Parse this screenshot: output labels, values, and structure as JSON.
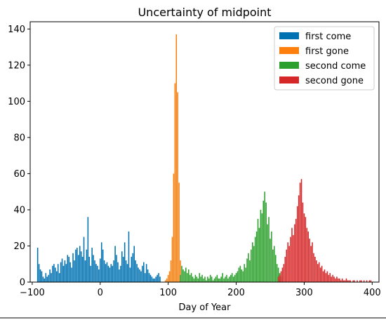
{
  "chart_data": {
    "type": "bar",
    "histogram": true,
    "title": "Uncertainty of midpoint",
    "xlabel": "Day of Year",
    "ylabel": "",
    "xlim": [
      -103,
      410
    ],
    "ylim": [
      0,
      144
    ],
    "xticks": [
      -100,
      0,
      100,
      200,
      300,
      400
    ],
    "yticks": [
      0,
      20,
      40,
      60,
      80,
      100,
      120,
      140
    ],
    "bin_width": 1.6,
    "legend_position": "top-right",
    "grid": false,
    "series": [
      {
        "name": "first come",
        "color": "#0072b2",
        "x": [
          -92,
          -90,
          -88,
          -86,
          -84,
          -82,
          -80,
          -78,
          -76,
          -74,
          -72,
          -70,
          -68,
          -66,
          -64,
          -62,
          -60,
          -58,
          -56,
          -54,
          -52,
          -50,
          -48,
          -46,
          -44,
          -42,
          -40,
          -38,
          -36,
          -34,
          -32,
          -30,
          -28,
          -26,
          -24,
          -22,
          -20,
          -18,
          -16,
          -14,
          -12,
          -10,
          -8,
          -6,
          -4,
          -2,
          0,
          2,
          4,
          6,
          8,
          10,
          12,
          14,
          16,
          18,
          20,
          22,
          24,
          26,
          28,
          30,
          32,
          34,
          36,
          38,
          40,
          42,
          44,
          46,
          48,
          50,
          52,
          54,
          56,
          58,
          60,
          62,
          64,
          66,
          68,
          70,
          72,
          74,
          76,
          78,
          80,
          82,
          84,
          86,
          88
        ],
        "values": [
          19,
          10,
          7,
          6,
          3,
          2,
          5,
          3,
          4,
          7,
          5,
          9,
          10,
          8,
          6,
          10,
          5,
          11,
          13,
          9,
          12,
          10,
          15,
          14,
          11,
          8,
          16,
          12,
          18,
          19,
          15,
          20,
          17,
          14,
          25,
          12,
          18,
          36,
          14,
          9,
          19,
          15,
          12,
          10,
          9,
          7,
          13,
          22,
          18,
          12,
          10,
          11,
          9,
          8,
          10,
          9,
          12,
          20,
          15,
          11,
          7,
          9,
          17,
          14,
          22,
          12,
          10,
          28,
          8,
          14,
          16,
          20,
          12,
          10,
          8,
          7,
          6,
          9,
          11,
          5,
          10,
          7,
          5,
          4,
          3,
          2,
          2,
          3,
          4,
          5,
          3
        ]
      },
      {
        "name": "first gone",
        "color": "#ff7f0e",
        "x": [
          96,
          98,
          100,
          102,
          104,
          106,
          108,
          110,
          112,
          114,
          116,
          118
        ],
        "values": [
          1,
          2,
          4,
          6,
          12,
          25,
          60,
          110,
          137,
          105,
          55,
          12
        ]
      },
      {
        "name": "second come",
        "color": "#2ca02c",
        "x": [
          118,
          120,
          122,
          124,
          126,
          128,
          130,
          132,
          134,
          136,
          138,
          140,
          142,
          144,
          146,
          148,
          150,
          152,
          154,
          156,
          158,
          160,
          162,
          164,
          166,
          168,
          170,
          172,
          174,
          176,
          178,
          180,
          182,
          184,
          186,
          188,
          190,
          192,
          194,
          196,
          198,
          200,
          202,
          204,
          206,
          208,
          210,
          212,
          214,
          216,
          218,
          220,
          222,
          224,
          226,
          228,
          230,
          232,
          234,
          236,
          238,
          240,
          242,
          244,
          246,
          248,
          250,
          252,
          254,
          256,
          258,
          260,
          262,
          264,
          266
        ],
        "values": [
          4,
          9,
          7,
          6,
          8,
          5,
          7,
          4,
          5,
          3,
          2,
          4,
          3,
          2,
          5,
          3,
          4,
          2,
          3,
          1,
          3,
          2,
          4,
          3,
          1,
          2,
          3,
          4,
          2,
          2,
          3,
          5,
          2,
          3,
          4,
          2,
          3,
          4,
          5,
          3,
          4,
          5,
          6,
          8,
          9,
          7,
          6,
          10,
          8,
          13,
          16,
          12,
          18,
          22,
          20,
          25,
          28,
          35,
          30,
          40,
          38,
          45,
          50,
          44,
          32,
          36,
          24,
          28,
          18,
          20,
          15,
          10,
          8,
          5,
          3
        ]
      },
      {
        "name": "second gone",
        "color": "#d62728",
        "x": [
          262,
          264,
          266,
          268,
          270,
          272,
          274,
          276,
          278,
          280,
          282,
          284,
          286,
          288,
          290,
          292,
          294,
          296,
          298,
          300,
          302,
          304,
          306,
          308,
          310,
          312,
          314,
          316,
          318,
          320,
          322,
          324,
          326,
          328,
          330,
          332,
          334,
          336,
          338,
          340,
          342,
          344,
          346,
          348,
          350,
          352,
          354,
          356,
          358,
          360,
          362,
          364,
          366,
          368,
          370,
          372,
          374,
          376,
          378,
          380,
          382,
          384,
          386,
          388,
          390,
          392,
          394,
          396,
          398
        ],
        "values": [
          3,
          4,
          6,
          8,
          10,
          14,
          18,
          22,
          20,
          25,
          30,
          26,
          32,
          35,
          42,
          48,
          55,
          57,
          44,
          38,
          36,
          30,
          28,
          24,
          20,
          22,
          16,
          14,
          12,
          10,
          11,
          8,
          9,
          6,
          7,
          5,
          6,
          4,
          5,
          3,
          4,
          3,
          2,
          3,
          2,
          2,
          1,
          2,
          1,
          1,
          2,
          1,
          1,
          1,
          0,
          1,
          1,
          0,
          1,
          0,
          1,
          1,
          0,
          1,
          0,
          1,
          0,
          1,
          1
        ]
      }
    ]
  }
}
